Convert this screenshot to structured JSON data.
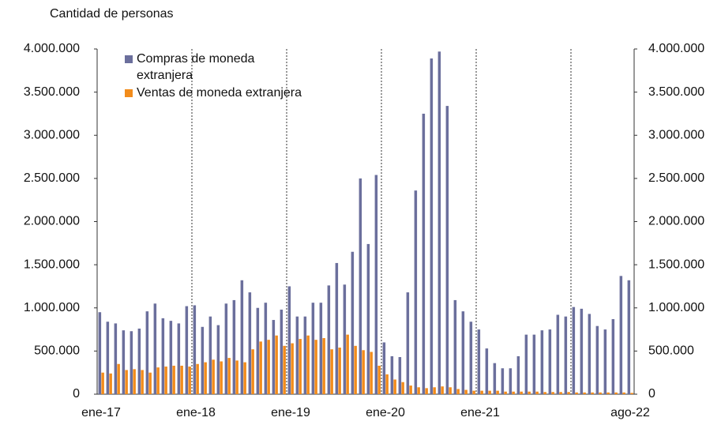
{
  "chart_data": {
    "type": "bar",
    "y_axis_label": "Cantidad de personas",
    "categories": [
      "ene-17",
      null,
      null,
      null,
      null,
      null,
      null,
      null,
      null,
      null,
      null,
      null,
      "ene-18",
      null,
      null,
      null,
      null,
      null,
      null,
      null,
      null,
      null,
      null,
      null,
      "ene-19",
      null,
      null,
      null,
      null,
      null,
      null,
      null,
      null,
      null,
      null,
      null,
      "ene-20",
      null,
      null,
      null,
      null,
      null,
      null,
      null,
      null,
      null,
      null,
      null,
      "ene-21",
      null,
      null,
      null,
      null,
      null,
      null,
      null,
      null,
      null,
      null,
      null,
      null,
      null,
      null,
      null,
      null,
      null,
      null,
      "ago-22"
    ],
    "series": [
      {
        "name": "Compras de moneda extranjera",
        "color": "#6b6f9c",
        "values": [
          950000,
          840000,
          820000,
          740000,
          730000,
          760000,
          960000,
          1050000,
          880000,
          850000,
          820000,
          1020000,
          1030000,
          780000,
          900000,
          800000,
          1050000,
          1090000,
          1320000,
          1180000,
          1000000,
          1060000,
          860000,
          980000,
          1250000,
          900000,
          900000,
          1060000,
          1060000,
          1260000,
          1520000,
          1270000,
          1650000,
          2500000,
          1740000,
          2540000,
          600000,
          440000,
          430000,
          1180000,
          2360000,
          3250000,
          3890000,
          3970000,
          3340000,
          1090000,
          960000,
          840000,
          750000,
          530000,
          360000,
          300000,
          300000,
          440000,
          690000,
          690000,
          740000,
          750000,
          920000,
          900000,
          1010000,
          990000,
          930000,
          790000,
          750000,
          870000,
          1370000,
          1320000
        ]
      },
      {
        "name": "Ventas de moneda extranjera",
        "color": "#f28c1c",
        "values": [
          250000,
          240000,
          350000,
          280000,
          290000,
          280000,
          250000,
          310000,
          320000,
          330000,
          330000,
          320000,
          350000,
          370000,
          400000,
          380000,
          420000,
          390000,
          370000,
          520000,
          610000,
          630000,
          680000,
          560000,
          590000,
          640000,
          680000,
          630000,
          650000,
          520000,
          540000,
          690000,
          560000,
          510000,
          490000,
          330000,
          230000,
          170000,
          140000,
          100000,
          80000,
          70000,
          80000,
          90000,
          80000,
          60000,
          50000,
          40000,
          40000,
          40000,
          40000,
          30000,
          30000,
          30000,
          30000,
          30000,
          25000,
          25000,
          25000,
          25000,
          20000,
          20000,
          20000,
          20000,
          20000,
          20000,
          20000,
          15000
        ]
      }
    ],
    "ylim": [
      0,
      4000000
    ],
    "yticks": [
      0,
      {
        "value": 500000,
        "label": "500.000"
      },
      {
        "value": 1000000,
        "label": "1.000.000"
      },
      {
        "value": 1500000,
        "label": "1.500.000"
      },
      {
        "value": 2000000,
        "label": "2.000.000"
      },
      {
        "value": 2500000,
        "label": "2.500.000"
      },
      {
        "value": 3000000,
        "label": "3.000.000"
      },
      {
        "value": 3500000,
        "label": "3.500.000"
      },
      {
        "value": 4000000,
        "label": "4.000.000"
      }
    ],
    "y2lim": [
      0,
      4000000
    ],
    "y2ticks": [
      0,
      {
        "value": 500000,
        "label": "500.000"
      },
      {
        "value": 1000000,
        "label": "1.000.000"
      },
      {
        "value": 1500000,
        "label": "1.500.000"
      },
      {
        "value": 2000000,
        "label": "2.000.000"
      },
      {
        "value": 2500000,
        "label": "2.500.000"
      },
      {
        "value": 3000000,
        "label": "3.000.000"
      },
      {
        "value": 3500000,
        "label": "3.500.000"
      },
      {
        "value": 4000000,
        "label": "4.000.000"
      }
    ],
    "legend": "upper left"
  }
}
